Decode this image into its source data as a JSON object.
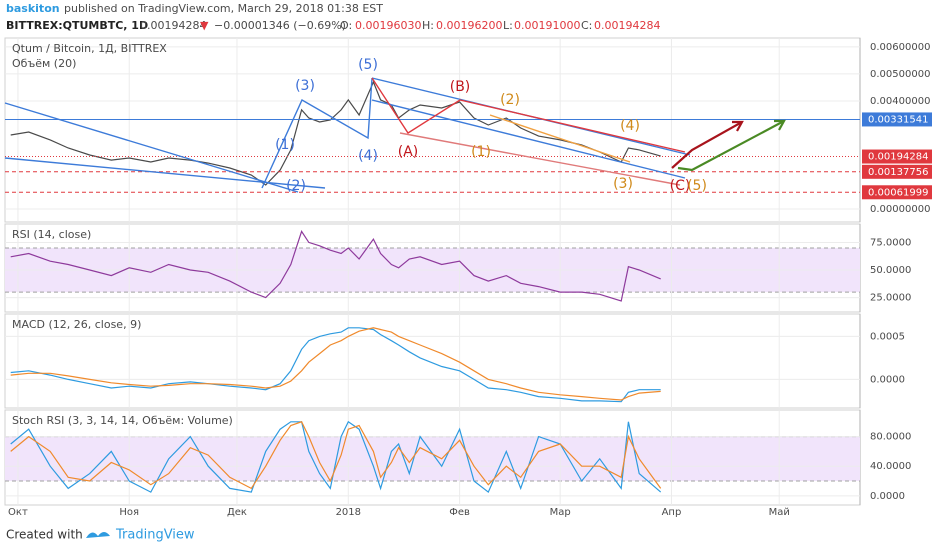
{
  "header": {
    "user": "baskiton",
    "published": "published on TradingView.com, March 29, 2018 01:38 EST",
    "symbol": "BITTREX:QTUMBTC, 1D",
    "last": "0.00194284",
    "arrow": "▼",
    "change": "−0.00001346 (−0.69%)",
    "o_label": "O:",
    "o": "0.00196030",
    "h_label": "H:",
    "h": "0.00196200",
    "l_label": "L:",
    "l": "0.00191000",
    "c_label": "C:",
    "c": "0.00194284"
  },
  "chart_data": [
    {
      "type": "line",
      "title": "Qtum / Bitcoin, 1Д, BITTREX",
      "subtitle": "Объём (20)",
      "color": "#4a4a4a",
      "x": [
        -2,
        3,
        9,
        14,
        20,
        26,
        31,
        37,
        42,
        48,
        53,
        59,
        65,
        69,
        73,
        76,
        79,
        81,
        84,
        87,
        90,
        92,
        95,
        99,
        101,
        104,
        106,
        109,
        112,
        118,
        123,
        127,
        131,
        136,
        140,
        145,
        151,
        157,
        162,
        168,
        170,
        173,
        179
      ],
      "values": [
        0.00274,
        0.00285,
        0.00256,
        0.00226,
        0.002,
        0.00181,
        0.00189,
        0.00174,
        0.00189,
        0.00181,
        0.0017,
        0.00152,
        0.00126,
        0.00089,
        0.00144,
        0.00219,
        0.00367,
        0.00337,
        0.00322,
        0.0033,
        0.00367,
        0.00404,
        0.00348,
        0.0047,
        0.00404,
        0.00385,
        0.00337,
        0.00367,
        0.00385,
        0.00374,
        0.00396,
        0.00337,
        0.00311,
        0.00337,
        0.003,
        0.0027,
        0.00256,
        0.00237,
        0.00211,
        0.00174,
        0.00226,
        0.00219,
        0.00196
      ],
      "xlim": [
        -3.6,
        234.5
      ],
      "xticks": [
        {
          "value": 0,
          "label": "Окт"
        },
        {
          "value": 31,
          "label": "Ноя"
        },
        {
          "value": 61,
          "label": "Дек"
        },
        {
          "value": 92,
          "label": "2018"
        },
        {
          "value": 123,
          "label": "Фев"
        },
        {
          "value": 151,
          "label": "Мар"
        },
        {
          "value": 182,
          "label": "Апр"
        },
        {
          "value": 212,
          "label": "Май"
        }
      ],
      "ylim": [
        -0.00048,
        0.00633
      ],
      "yticks": [
        {
          "value": 0.006,
          "label": "0.00600000"
        },
        {
          "value": 0.005,
          "label": "0.00500000"
        },
        {
          "value": 0.004,
          "label": "0.00400000"
        },
        {
          "value": 0,
          "label": "0.00000000"
        }
      ],
      "levels": [
        {
          "value": 0.00331541,
          "color": "#3d7bd9"
        },
        {
          "value": 0.00194284,
          "color": "#e0383e"
        },
        {
          "value": 0.00137756,
          "color": "#e0383e"
        },
        {
          "value": 0.00061999,
          "color": "#e0383e"
        }
      ],
      "annotations": [
        {
          "text": "(1)",
          "color": "#3d6fd6"
        },
        {
          "text": "(2)",
          "color": "#3d6fd6"
        },
        {
          "text": "(3)",
          "color": "#3d6fd6"
        },
        {
          "text": "(4)",
          "color": "#3d6fd6"
        },
        {
          "text": "(5)",
          "color": "#3d6fd6"
        },
        {
          "text": "(A)",
          "color": "#c0161c"
        },
        {
          "text": "(B)",
          "color": "#c0161c"
        },
        {
          "text": "(1)",
          "color": "#d08a1a"
        },
        {
          "text": "(2)",
          "color": "#d08a1a"
        },
        {
          "text": "(3)",
          "color": "#d08a1a"
        },
        {
          "text": "(4)",
          "color": "#d08a1a"
        },
        {
          "text": "(C)",
          "color": "#c0161c"
        },
        {
          "text": "(5)",
          "color": "#d08a1a"
        }
      ]
    },
    {
      "type": "line",
      "title": "RSI (14, close)",
      "color": "#8e3a9c",
      "x": [
        -2,
        3,
        9,
        14,
        20,
        26,
        31,
        37,
        42,
        48,
        53,
        59,
        65,
        69,
        73,
        76,
        79,
        81,
        84,
        87,
        90,
        92,
        95,
        99,
        101,
        104,
        106,
        109,
        112,
        118,
        123,
        127,
        131,
        136,
        140,
        145,
        151,
        157,
        162,
        168,
        170,
        173,
        179
      ],
      "values": [
        62,
        65,
        58,
        55,
        50,
        45,
        52,
        48,
        55,
        50,
        48,
        40,
        30,
        25,
        38,
        55,
        85,
        75,
        72,
        68,
        65,
        70,
        60,
        78,
        65,
        55,
        52,
        60,
        62,
        55,
        58,
        45,
        40,
        45,
        38,
        35,
        30,
        30,
        28,
        22,
        53,
        50,
        42
      ],
      "xlim": [
        -3.6,
        234.5
      ],
      "ylim": [
        12,
        91.7
      ],
      "band": [
        30,
        70
      ],
      "yticks": [
        {
          "value": 75,
          "label": "75.0000"
        },
        {
          "value": 50,
          "label": "50.0000"
        },
        {
          "value": 25,
          "label": "25.0000"
        }
      ]
    },
    {
      "type": "line",
      "title": "MACD (12, 26, close, 9)",
      "x": [
        -2,
        3,
        9,
        14,
        20,
        26,
        31,
        37,
        42,
        48,
        53,
        59,
        65,
        69,
        73,
        76,
        79,
        81,
        84,
        87,
        90,
        92,
        95,
        99,
        101,
        104,
        106,
        109,
        112,
        118,
        123,
        127,
        131,
        136,
        140,
        145,
        151,
        157,
        162,
        168,
        170,
        173,
        179
      ],
      "series": [
        {
          "color": "#2e9be0",
          "values": [
            8e-05,
            0.0001,
            5e-05,
            0,
            -5e-05,
            -0.0001,
            -8e-05,
            -0.0001,
            -5e-05,
            -3e-05,
            -5e-05,
            -8e-05,
            -0.0001,
            -0.00012,
            -5e-05,
            0.0001,
            0.00035,
            0.00045,
            0.0005,
            0.00053,
            0.00055,
            0.0006,
            0.0006,
            0.00058,
            0.00052,
            0.00045,
            0.0004,
            0.00032,
            0.00025,
            0.00015,
            0.0001,
            0,
            -0.0001,
            -0.00012,
            -0.00015,
            -0.0002,
            -0.00022,
            -0.00025,
            -0.00025,
            -0.00026,
            -0.00015,
            -0.00012,
            -0.00012
          ]
        },
        {
          "color": "#f08a2c",
          "values": [
            5e-05,
            7e-05,
            7e-05,
            4e-05,
            0,
            -4e-05,
            -6e-05,
            -8e-05,
            -7e-05,
            -5e-05,
            -5e-05,
            -6e-05,
            -8e-05,
            -0.0001,
            -8e-05,
            -2e-05,
            0.0001,
            0.0002,
            0.0003,
            0.0004,
            0.00045,
            0.0005,
            0.00056,
            0.0006,
            0.00058,
            0.00055,
            0.0005,
            0.00045,
            0.0004,
            0.0003,
            0.0002,
            0.0001,
            0,
            -5e-05,
            -0.0001,
            -0.00015,
            -0.00018,
            -0.0002,
            -0.00022,
            -0.00024,
            -0.0002,
            -0.00016,
            -0.00014
          ]
        }
      ],
      "xlim": [
        -3.6,
        234.5
      ],
      "ylim": [
        -0.000333,
        0.00076
      ],
      "yticks": [
        {
          "value": 0.0005,
          "label": "0.0005"
        },
        {
          "value": 0,
          "label": "0.0000"
        }
      ]
    },
    {
      "type": "line",
      "title": "Stoch RSI (3, 3, 14, 14, Объём: Volume)",
      "x": [
        -2,
        3,
        9,
        14,
        20,
        26,
        31,
        37,
        42,
        48,
        53,
        59,
        65,
        69,
        73,
        76,
        79,
        81,
        84,
        87,
        90,
        92,
        95,
        99,
        101,
        104,
        106,
        109,
        112,
        118,
        123,
        127,
        131,
        136,
        140,
        145,
        151,
        157,
        162,
        168,
        170,
        173,
        179
      ],
      "series": [
        {
          "color": "#2e9be0",
          "values": [
            70,
            90,
            40,
            10,
            30,
            60,
            20,
            5,
            50,
            80,
            40,
            10,
            5,
            60,
            90,
            100,
            100,
            60,
            30,
            10,
            80,
            100,
            90,
            40,
            10,
            60,
            70,
            30,
            80,
            40,
            90,
            20,
            5,
            60,
            10,
            80,
            70,
            20,
            50,
            10,
            100,
            30,
            5
          ]
        },
        {
          "color": "#f08a2c",
          "values": [
            60,
            80,
            60,
            25,
            20,
            45,
            35,
            15,
            30,
            65,
            55,
            25,
            10,
            40,
            75,
            95,
            100,
            80,
            45,
            20,
            55,
            90,
            95,
            60,
            25,
            45,
            65,
            45,
            65,
            50,
            75,
            40,
            15,
            40,
            25,
            60,
            70,
            40,
            40,
            25,
            80,
            50,
            10
          ]
        }
      ],
      "xlim": [
        -3.6,
        234.5
      ],
      "ylim": [
        -12.4,
        115.9
      ],
      "band": [
        20,
        80
      ],
      "yticks": [
        {
          "value": 80,
          "label": "80.0000"
        },
        {
          "value": 40,
          "label": "40.0000"
        },
        {
          "value": 0,
          "label": "0.0000"
        }
      ]
    }
  ],
  "footer": {
    "created": "Created with",
    "brand": "TradingView"
  }
}
